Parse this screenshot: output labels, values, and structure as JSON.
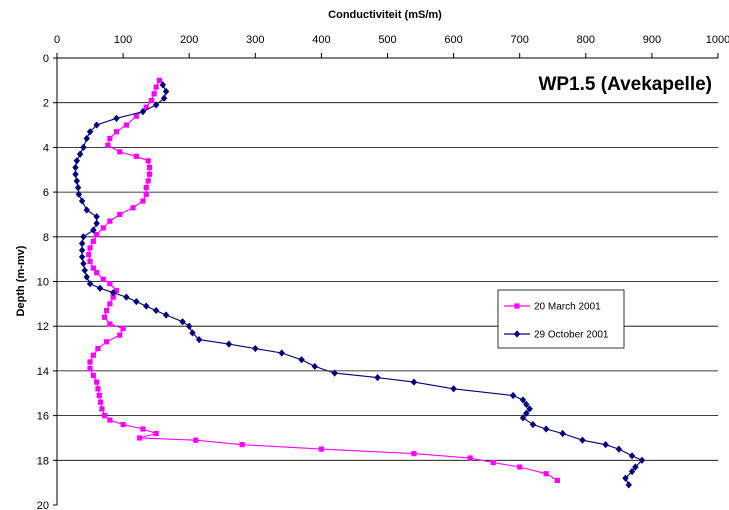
{
  "chart_data": {
    "type": "scatter",
    "title": "WP1.5 (Avekapelle)",
    "xlabel": "Conductiviteit (mS/m)",
    "ylabel": "Depth (m-mv)",
    "xlim": [
      0,
      1000
    ],
    "ylim": [
      0,
      20
    ],
    "x_axis_position": "top",
    "y_axis_inverted": true,
    "x_ticks": [
      "0",
      "100",
      "200",
      "300",
      "400",
      "500",
      "600",
      "700",
      "800",
      "900",
      "1000"
    ],
    "y_ticks": [
      "0",
      "2",
      "4",
      "6",
      "8",
      "10",
      "12",
      "14",
      "16",
      "18",
      "20"
    ],
    "grid": "horizontal",
    "legend_position": "right",
    "series": [
      {
        "name": "20 March 2001",
        "color": "#ff00ff",
        "marker": "square",
        "points": [
          [
            155,
            1.0
          ],
          [
            150,
            1.3
          ],
          [
            147,
            1.6
          ],
          [
            143,
            1.9
          ],
          [
            135,
            2.2
          ],
          [
            120,
            2.6
          ],
          [
            105,
            3.0
          ],
          [
            90,
            3.3
          ],
          [
            80,
            3.6
          ],
          [
            77,
            3.9
          ],
          [
            95,
            4.2
          ],
          [
            120,
            4.4
          ],
          [
            138,
            4.6
          ],
          [
            140,
            4.9
          ],
          [
            140,
            5.2
          ],
          [
            138,
            5.5
          ],
          [
            135,
            5.8
          ],
          [
            135,
            6.1
          ],
          [
            130,
            6.4
          ],
          [
            115,
            6.7
          ],
          [
            95,
            7.0
          ],
          [
            80,
            7.3
          ],
          [
            70,
            7.6
          ],
          [
            60,
            7.9
          ],
          [
            55,
            8.2
          ],
          [
            50,
            8.5
          ],
          [
            48,
            8.8
          ],
          [
            50,
            9.1
          ],
          [
            55,
            9.4
          ],
          [
            60,
            9.6
          ],
          [
            70,
            9.9
          ],
          [
            80,
            10.1
          ],
          [
            90,
            10.4
          ],
          [
            85,
            10.7
          ],
          [
            80,
            11.0
          ],
          [
            75,
            11.3
          ],
          [
            72,
            11.6
          ],
          [
            80,
            11.9
          ],
          [
            100,
            12.1
          ],
          [
            95,
            12.4
          ],
          [
            75,
            12.7
          ],
          [
            62,
            13.0
          ],
          [
            55,
            13.3
          ],
          [
            50,
            13.6
          ],
          [
            50,
            13.9
          ],
          [
            55,
            14.2
          ],
          [
            60,
            14.5
          ],
          [
            62,
            14.8
          ],
          [
            64,
            15.1
          ],
          [
            66,
            15.4
          ],
          [
            68,
            15.7
          ],
          [
            72,
            16.0
          ],
          [
            80,
            16.2
          ],
          [
            100,
            16.4
          ],
          [
            130,
            16.6
          ],
          [
            150,
            16.8
          ],
          [
            125,
            17.0
          ],
          [
            210,
            17.1
          ],
          [
            280,
            17.3
          ],
          [
            400,
            17.5
          ],
          [
            540,
            17.7
          ],
          [
            625,
            17.9
          ],
          [
            660,
            18.1
          ],
          [
            700,
            18.3
          ],
          [
            740,
            18.6
          ],
          [
            757,
            18.9
          ]
        ]
      },
      {
        "name": "29 October 2001",
        "color": "#000080",
        "marker": "diamond",
        "points": [
          [
            160,
            1.2
          ],
          [
            165,
            1.5
          ],
          [
            162,
            1.8
          ],
          [
            150,
            2.1
          ],
          [
            130,
            2.4
          ],
          [
            90,
            2.7
          ],
          [
            60,
            3.0
          ],
          [
            50,
            3.3
          ],
          [
            45,
            3.6
          ],
          [
            40,
            4.0
          ],
          [
            35,
            4.3
          ],
          [
            30,
            4.6
          ],
          [
            28,
            4.9
          ],
          [
            28,
            5.2
          ],
          [
            30,
            5.5
          ],
          [
            32,
            5.8
          ],
          [
            33,
            6.1
          ],
          [
            38,
            6.4
          ],
          [
            45,
            6.8
          ],
          [
            60,
            7.1
          ],
          [
            60,
            7.4
          ],
          [
            55,
            7.7
          ],
          [
            40,
            8.0
          ],
          [
            38,
            8.3
          ],
          [
            38,
            8.6
          ],
          [
            38,
            8.9
          ],
          [
            40,
            9.2
          ],
          [
            42,
            9.5
          ],
          [
            45,
            9.8
          ],
          [
            50,
            10.1
          ],
          [
            65,
            10.3
          ],
          [
            85,
            10.5
          ],
          [
            105,
            10.7
          ],
          [
            120,
            10.9
          ],
          [
            135,
            11.1
          ],
          [
            150,
            11.3
          ],
          [
            165,
            11.5
          ],
          [
            190,
            11.8
          ],
          [
            200,
            12.0
          ],
          [
            205,
            12.3
          ],
          [
            215,
            12.6
          ],
          [
            260,
            12.8
          ],
          [
            300,
            13.0
          ],
          [
            340,
            13.2
          ],
          [
            370,
            13.5
          ],
          [
            390,
            13.8
          ],
          [
            420,
            14.1
          ],
          [
            485,
            14.3
          ],
          [
            540,
            14.5
          ],
          [
            600,
            14.8
          ],
          [
            690,
            15.1
          ],
          [
            705,
            15.3
          ],
          [
            710,
            15.5
          ],
          [
            715,
            15.7
          ],
          [
            710,
            15.9
          ],
          [
            705,
            16.1
          ],
          [
            720,
            16.4
          ],
          [
            740,
            16.6
          ],
          [
            765,
            16.8
          ],
          [
            795,
            17.1
          ],
          [
            830,
            17.3
          ],
          [
            850,
            17.5
          ],
          [
            870,
            17.8
          ],
          [
            885,
            18.0
          ],
          [
            875,
            18.3
          ],
          [
            870,
            18.5
          ],
          [
            860,
            18.8
          ],
          [
            865,
            19.1
          ]
        ]
      }
    ]
  }
}
